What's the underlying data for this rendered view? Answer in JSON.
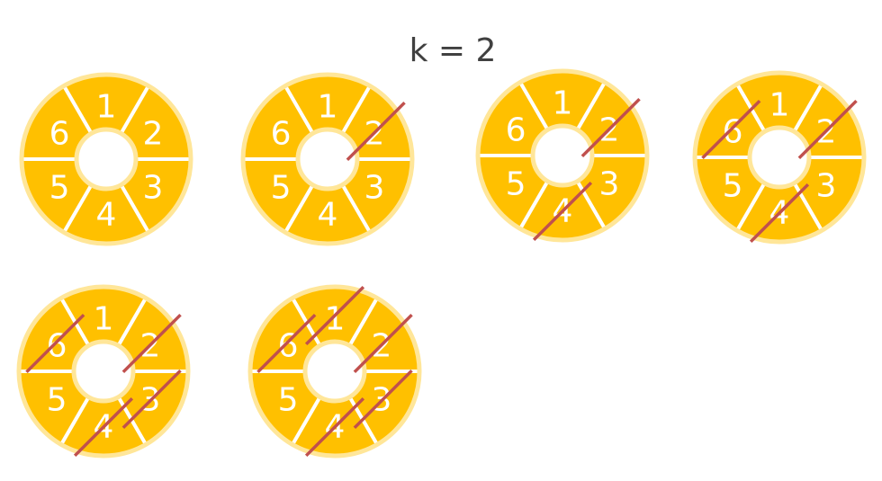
{
  "title": "k = 2",
  "colors": {
    "segment": "#FFC000",
    "rim": "#FFE699",
    "cross": "#C0504D"
  },
  "segment_labels": [
    "1",
    "2",
    "3",
    "4",
    "5",
    "6"
  ],
  "wheels": [
    {
      "crossed": []
    },
    {
      "crossed": [
        "2"
      ]
    },
    {
      "crossed": [
        "2",
        "4"
      ]
    },
    {
      "crossed": [
        "2",
        "4",
        "6"
      ]
    },
    {
      "crossed": [
        "2",
        "4",
        "6",
        "3"
      ]
    },
    {
      "crossed": [
        "2",
        "4",
        "6",
        "3",
        "1"
      ]
    }
  ]
}
